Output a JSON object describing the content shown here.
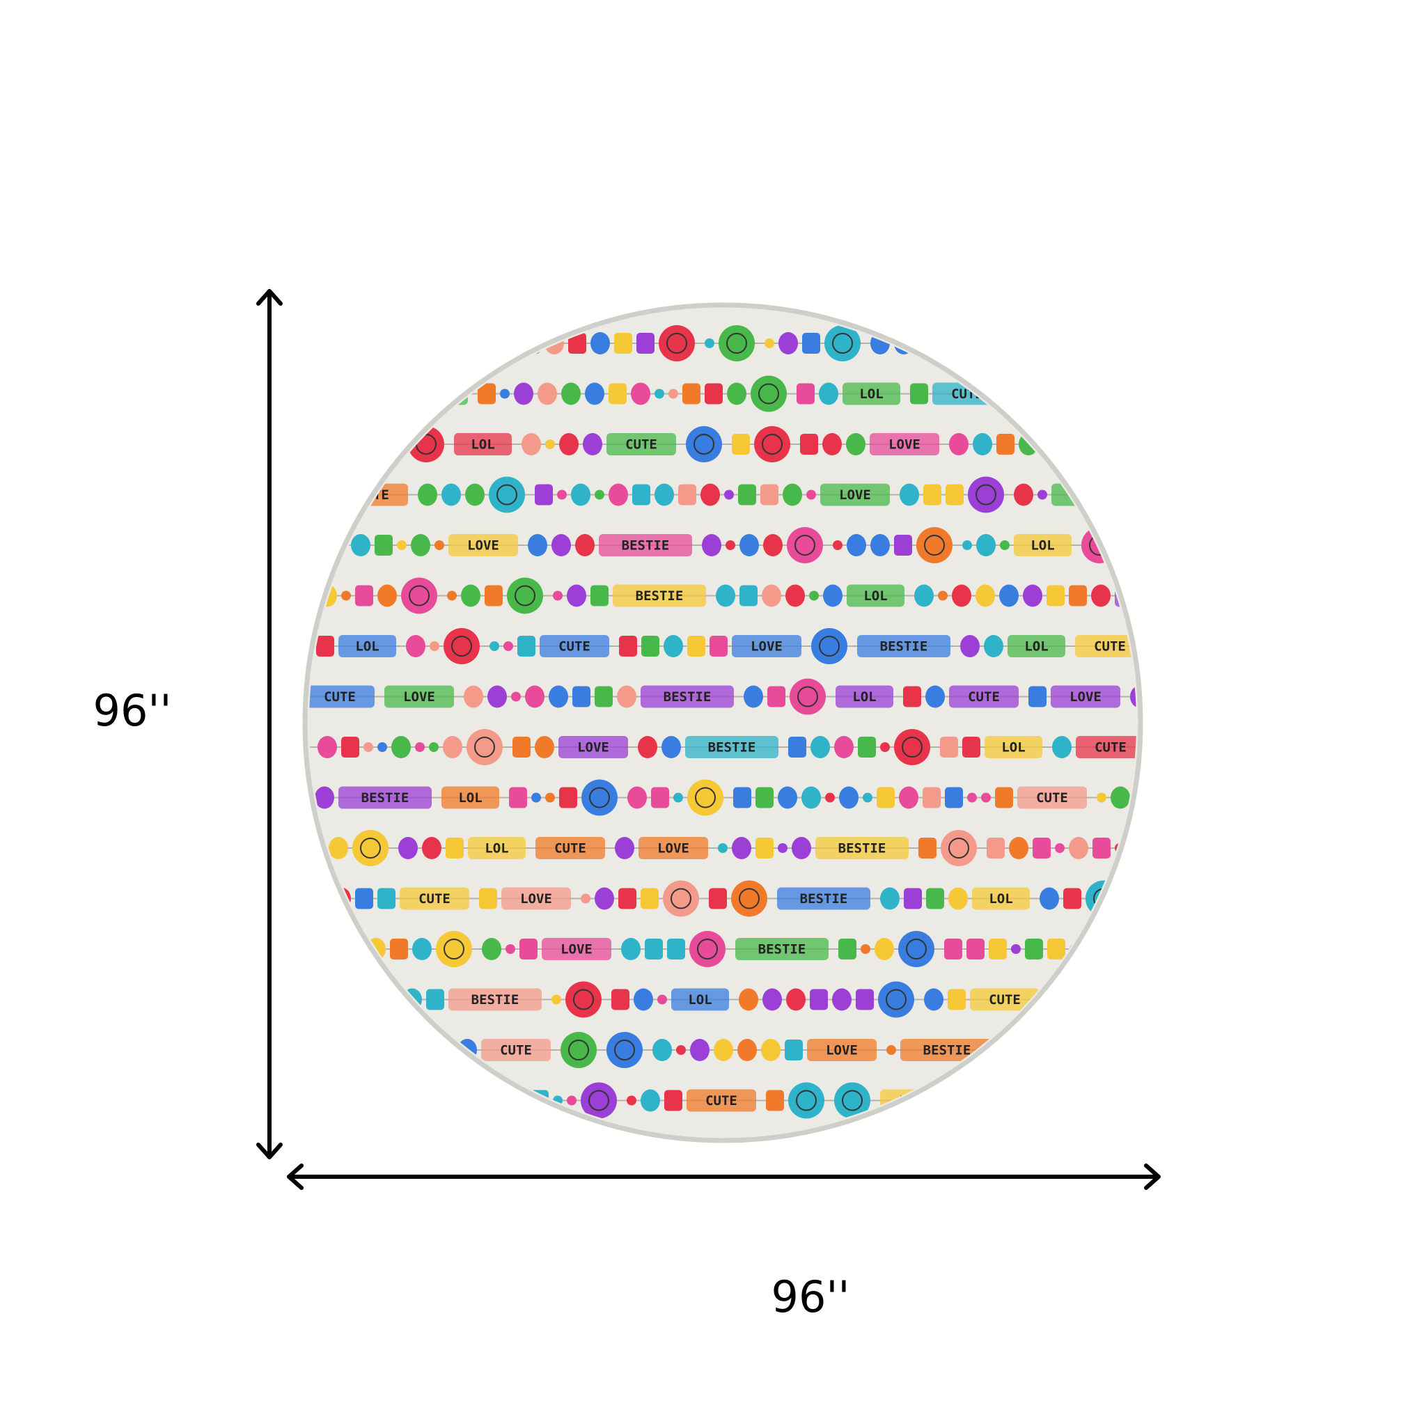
{
  "dimensions": {
    "height_label": "96''",
    "width_label": "96''"
  },
  "pattern_words": [
    "LOVE",
    "BESTIE",
    "LOL",
    "CUTE"
  ]
}
